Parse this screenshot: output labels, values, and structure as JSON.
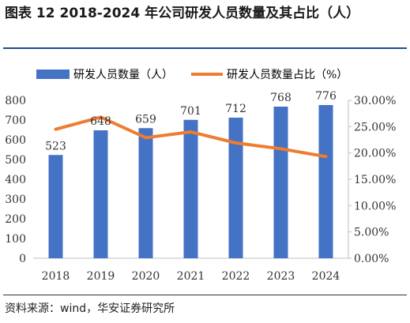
{
  "header": {
    "title": "图表 12 2018-2024 年公司研发人员数量及其占比（人）"
  },
  "footer": {
    "source": "资料来源：wind，华安证券研究所"
  },
  "colors": {
    "bar": "#4472C4",
    "line": "#ED7D31",
    "title_rule": "#1f4e8c"
  },
  "chart_data": {
    "type": "bar",
    "categories": [
      "2018",
      "2019",
      "2020",
      "2021",
      "2022",
      "2023",
      "2024"
    ],
    "series": [
      {
        "name": "研发人员数量（人）",
        "type": "bar",
        "axis": "left",
        "values": [
          523,
          648,
          659,
          701,
          712,
          768,
          776
        ],
        "data_labels": [
          "523",
          "648",
          "659",
          "701",
          "712",
          "768",
          "776"
        ]
      },
      {
        "name": "研发人员数量占比（%）",
        "type": "line",
        "axis": "right",
        "values": [
          24.5,
          26.8,
          22.9,
          24.0,
          21.9,
          20.8,
          19.3
        ]
      }
    ],
    "left_axis": {
      "ylim": [
        0,
        800
      ],
      "ticks": [
        "0",
        "100",
        "200",
        "300",
        "400",
        "500",
        "600",
        "700",
        "800"
      ]
    },
    "right_axis": {
      "ylim": [
        0,
        30
      ],
      "ticks": [
        "0.00%",
        "5.00%",
        "10.00%",
        "15.00%",
        "20.00%",
        "25.00%",
        "30.00%"
      ]
    },
    "legend_position": "top",
    "grid": false
  }
}
